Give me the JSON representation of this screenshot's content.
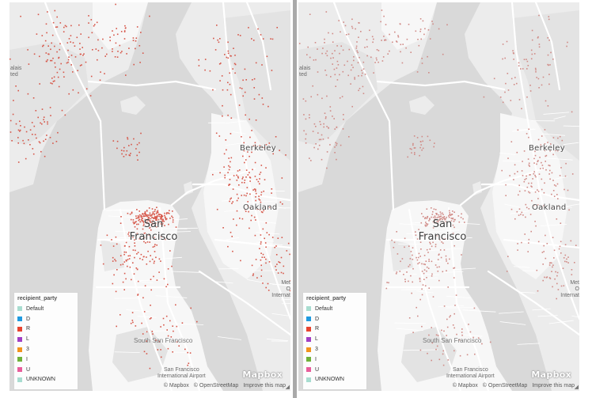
{
  "maps": [
    {
      "id": "left",
      "labels": {
        "berkeley": "Berkeley",
        "oakland": "Oakland",
        "sf_line1": "San",
        "sf_line2": "Francisco",
        "south_sf": "South San Francisco",
        "airport_line1": "San Francisco",
        "airport_line2": "International Airport",
        "left_edge_line1": "alais",
        "left_edge_line2": "ted",
        "right_edge_line1": "Met",
        "right_edge_line2": "O",
        "right_edge_line3": "Internat"
      },
      "legend": {
        "title": "recipient_party",
        "items": [
          {
            "label": "Default",
            "color": "#a8ddd0"
          },
          {
            "label": "D",
            "color": "#1f9ae0"
          },
          {
            "label": "R",
            "color": "#e8432f"
          },
          {
            "label": "L",
            "color": "#a13fc4"
          },
          {
            "label": "3",
            "color": "#f2931c"
          },
          {
            "label": "I",
            "color": "#6fb23a"
          },
          {
            "label": "U",
            "color": "#e85d9b"
          },
          {
            "label": "UNKNOWN",
            "color": "#a8ddd0"
          }
        ]
      },
      "logo": "Mapbox",
      "attribution": [
        "© Mapbox",
        "© OpenStreetMap",
        "Improve this map"
      ],
      "point_color": "#d65548"
    },
    {
      "id": "right",
      "labels": {
        "berkeley": "Berkeley",
        "oakland": "Oakland",
        "sf_line1": "San",
        "sf_line2": "Francisco",
        "south_sf": "South San Francisco",
        "airport_line1": "San Francisco",
        "airport_line2": "International Airport",
        "left_edge_line1": "alais",
        "left_edge_line2": "ted",
        "right_edge_line1": "Met",
        "right_edge_line2": "O",
        "right_edge_line3": "Internat"
      },
      "legend": {
        "title": "recipient_party",
        "items": [
          {
            "label": "Default",
            "color": "#a8ddd0"
          },
          {
            "label": "D",
            "color": "#1f9ae0"
          },
          {
            "label": "R",
            "color": "#e8432f"
          },
          {
            "label": "L",
            "color": "#a13fc4"
          },
          {
            "label": "3",
            "color": "#f2931c"
          },
          {
            "label": "I",
            "color": "#6fb23a"
          },
          {
            "label": "U",
            "color": "#e85d9b"
          },
          {
            "label": "UNKNOWN",
            "color": "#a8ddd0"
          }
        ]
      },
      "logo": "Mapbox",
      "attribution": [
        "© Mapbox",
        "© OpenStreetMap",
        "Improve this map"
      ],
      "point_color": "#d08a86"
    }
  ]
}
